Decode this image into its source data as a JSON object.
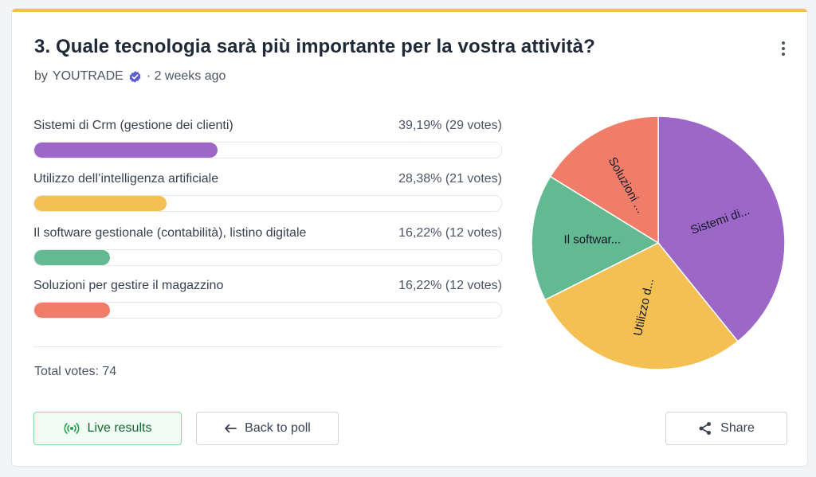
{
  "poll": {
    "title": "3. Quale tecnologia sarà più importante per la vostra attività?",
    "author_prefix": "by",
    "author": "YOUTRADE",
    "time": "· 2 weeks ago",
    "total_votes_label": "Total votes: 74"
  },
  "options": [
    {
      "label": "Sistemi di Crm (gestione dei clienti)",
      "result": "39,19% (29 votes)",
      "percent": 39.19,
      "votes": 29,
      "color": "#9d67c8"
    },
    {
      "label": "Utilizzo dell’intelligenza artificiale",
      "result": "28,38% (21 votes)",
      "percent": 28.38,
      "votes": 21,
      "color": "#f4bf53"
    },
    {
      "label": "Il software gestionale (contabilità), listino digitale",
      "result": "16,22% (12 votes)",
      "percent": 16.22,
      "votes": 12,
      "color": "#63b992"
    },
    {
      "label": "Soluzioni per gestire il magazzino",
      "result": "16,22% (12 votes)",
      "percent": 16.22,
      "votes": 12,
      "color": "#ef7d6a"
    }
  ],
  "chart_data": {
    "type": "pie",
    "slices": [
      {
        "label": "Sistemi di...",
        "value": 29,
        "color": "#9d67c8"
      },
      {
        "label": "Utilizzo d...",
        "value": 21,
        "color": "#f4bf53"
      },
      {
        "label": "Il softwar...",
        "value": 12,
        "color": "#63b992"
      },
      {
        "label": "Soluzioni ...",
        "value": 12,
        "color": "#ef7d6a"
      }
    ]
  },
  "buttons": {
    "live": "Live results",
    "back": "Back to poll",
    "share": "Share"
  },
  "icons": {
    "menu": "kebab-menu-icon",
    "verified": "verified-badge-icon",
    "live": "broadcast-icon",
    "back": "arrow-left-icon",
    "share": "share-icon"
  },
  "colors": {
    "accent_bar": "#f2c14e",
    "verified": "#5b5bd6",
    "live_green": "#22a04b"
  }
}
